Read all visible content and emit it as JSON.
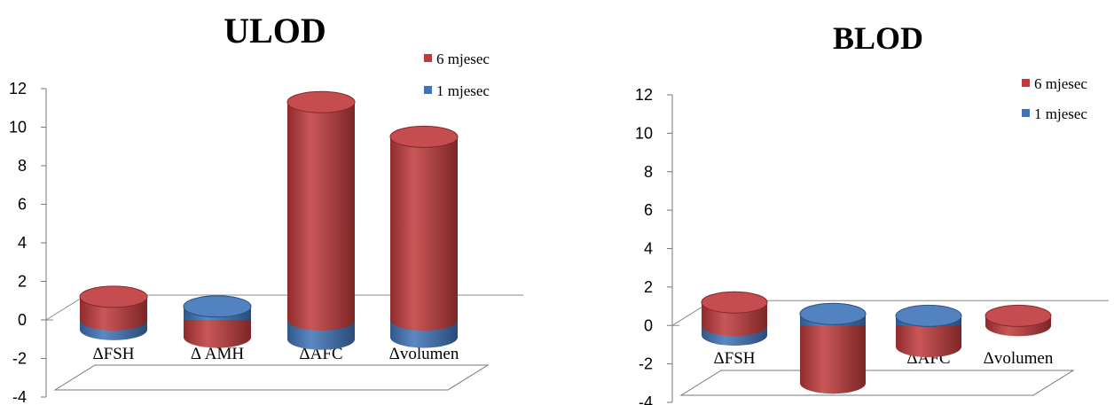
{
  "chart_data": [
    {
      "type": "bar",
      "title": "ULOD",
      "categories": [
        "ΔFSH",
        "Δ AMH",
        "ΔAFC",
        "Δvolumen"
      ],
      "series": [
        {
          "name": "6 mjesec",
          "values": [
            1.2,
            -0.9,
            11.3,
            9.5
          ],
          "color": "#C0393B"
        },
        {
          "name": "1 mjesec",
          "values": [
            0.5,
            0.7,
            1.0,
            0.9
          ],
          "color": "#3F74B8"
        }
      ],
      "ylim": [
        -4,
        12
      ],
      "yticks": [
        12,
        10,
        8,
        6,
        4,
        2,
        0,
        -2,
        -4
      ],
      "legend": "top-right",
      "xlabel": "",
      "ylabel": ""
    },
    {
      "type": "bar",
      "title": "BLOD",
      "categories": [
        "ΔFSH",
        "Δ AMH",
        "ΔAFC",
        "Δvolumen"
      ],
      "series": [
        {
          "name": "6 mjesec",
          "values": [
            1.2,
            -3.0,
            -1.1,
            0.5
          ],
          "color": "#C0393B"
        },
        {
          "name": "1 mjesec",
          "values": [
            0.5,
            0.6,
            0.5,
            -0.2
          ],
          "color": "#3F74B8"
        }
      ],
      "ylim": [
        -4,
        12
      ],
      "yticks": [
        12,
        10,
        8,
        6,
        4,
        2,
        0,
        -2,
        -4
      ],
      "legend": "top-right",
      "xlabel": "",
      "ylabel": ""
    }
  ]
}
